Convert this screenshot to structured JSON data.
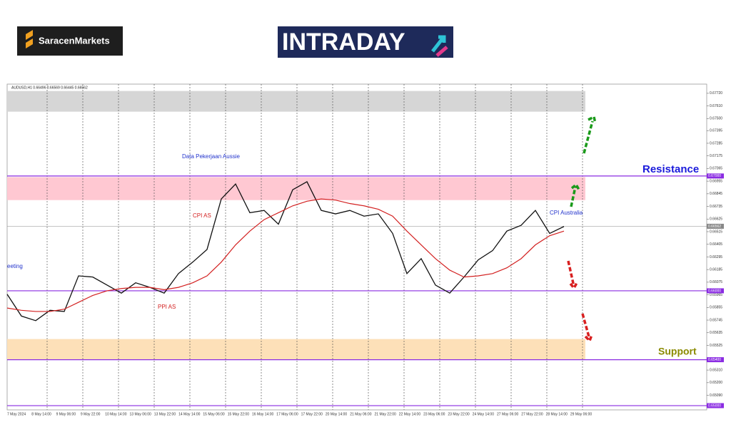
{
  "header": {
    "brand": "SaracenMarkets",
    "banner": "INTRADAY"
  },
  "chart_data": {
    "type": "line",
    "title": "AUDUSD,H1  0.66496 0.66569 0.66445 0.66562",
    "xtick_labels": [
      "7 May 2024",
      "8 May 14:00",
      "9 May 06:00",
      "9 May 22:00",
      "10 May 14:00",
      "13 May 06:00",
      "13 May 22:00",
      "14 May 14:00",
      "15 May 06:00",
      "15 May 22:00",
      "16 May 14:00",
      "17 May 06:00",
      "17 May 22:00",
      "20 May 14:00",
      "21 May 06:00",
      "21 May 22:00",
      "22 May 14:00",
      "23 May 06:00",
      "23 May 22:00",
      "24 May 14:00",
      "27 May 06:00",
      "27 May 22:00",
      "28 May 14:00",
      "29 May 06:00"
    ],
    "series": [
      {
        "name": "AUDUSD",
        "color": "#111111",
        "values": [
          0.6597,
          0.6578,
          0.6574,
          0.6583,
          0.6582,
          0.6613,
          0.6612,
          0.6605,
          0.6598,
          0.6607,
          0.6603,
          0.6598,
          0.6615,
          0.6625,
          0.6636,
          0.668,
          0.6693,
          0.6668,
          0.667,
          0.6658,
          0.6688,
          0.6695,
          0.667,
          0.6667,
          0.667,
          0.6665,
          0.6667,
          0.665,
          0.6615,
          0.6628,
          0.6605,
          0.6598,
          0.6612,
          0.6627,
          0.6635,
          0.6652,
          0.6657,
          0.667,
          0.665,
          0.6656
        ]
      },
      {
        "name": "MA",
        "color": "#d32020",
        "values": [
          0.6585,
          0.6583,
          0.6582,
          0.6582,
          0.6584,
          0.659,
          0.6596,
          0.66,
          0.6602,
          0.6603,
          0.6603,
          0.6601,
          0.6603,
          0.6607,
          0.6613,
          0.6625,
          0.664,
          0.6652,
          0.6662,
          0.6668,
          0.6674,
          0.6678,
          0.668,
          0.6679,
          0.6676,
          0.6674,
          0.6671,
          0.6665,
          0.6652,
          0.664,
          0.6628,
          0.6618,
          0.6612,
          0.6613,
          0.6615,
          0.662,
          0.6628,
          0.664,
          0.6648,
          0.6652
        ]
      }
    ],
    "ylim": [
      0.64963,
      0.678
    ],
    "yticks": [
      {
        "value": 0.6772,
        "label": "0.67720"
      },
      {
        "value": 0.6761,
        "label": "0.67610"
      },
      {
        "value": 0.675,
        "label": "0.67500"
      },
      {
        "value": 0.67395,
        "label": "0.67395"
      },
      {
        "value": 0.67285,
        "label": "0.67285"
      },
      {
        "value": 0.67175,
        "label": "0.67175"
      },
      {
        "value": 0.67065,
        "label": "0.67065"
      },
      {
        "value": 0.66955,
        "label": "0.66955"
      },
      {
        "value": 0.66845,
        "label": "0.66845"
      },
      {
        "value": 0.66735,
        "label": "0.66735"
      },
      {
        "value": 0.66625,
        "label": "0.66625"
      },
      {
        "value": 0.66515,
        "label": "0.66515"
      },
      {
        "value": 0.66405,
        "label": "0.66405"
      },
      {
        "value": 0.66295,
        "label": "0.66295"
      },
      {
        "value": 0.66185,
        "label": "0.66185"
      },
      {
        "value": 0.66075,
        "label": "0.66075"
      },
      {
        "value": 0.65965,
        "label": "0.65965"
      },
      {
        "value": 0.65855,
        "label": "0.65855"
      },
      {
        "value": 0.65745,
        "label": "0.65745"
      },
      {
        "value": 0.65635,
        "label": "0.65635"
      },
      {
        "value": 0.65525,
        "label": "0.65525"
      },
      {
        "value": 0.6531,
        "label": "0.65310"
      },
      {
        "value": 0.652,
        "label": "0.65200"
      },
      {
        "value": 0.6509,
        "label": "0.65090"
      }
    ],
    "levels": [
      {
        "value": 0.67,
        "label": "0.67000",
        "color": "#8a2be2"
      },
      {
        "value": 0.66562,
        "label": "0.66562",
        "color": "#888888"
      },
      {
        "value": 0.66,
        "label": "0.66000",
        "color": "#8a2be2"
      },
      {
        "value": 0.654,
        "label": "0.65400",
        "color": "#8a2be2"
      },
      {
        "value": 0.65,
        "label": "0.65000",
        "color": "#8a2be2"
      }
    ],
    "zones": [
      {
        "range": [
          0.6756,
          0.6774
        ],
        "color": "#d6d6d6"
      },
      {
        "range": [
          0.6679,
          0.6699
        ],
        "color": "#ffc8d2"
      },
      {
        "range": [
          0.654,
          0.6558
        ],
        "color": "#fde0b8"
      }
    ],
    "annotations": [
      {
        "text": "eeting",
        "color": "#2233cc"
      },
      {
        "text": "Data Pekerjaan Aussie",
        "color": "#2233cc"
      },
      {
        "text": "CPI AS",
        "color": "#d32020"
      },
      {
        "text": "PPI AS",
        "color": "#d32020"
      },
      {
        "text": "CPI Australia",
        "color": "#2233cc"
      },
      {
        "text": "Resistance",
        "color": "#1a1adb"
      },
      {
        "text": "Support",
        "color": "#8a8a00"
      }
    ]
  }
}
